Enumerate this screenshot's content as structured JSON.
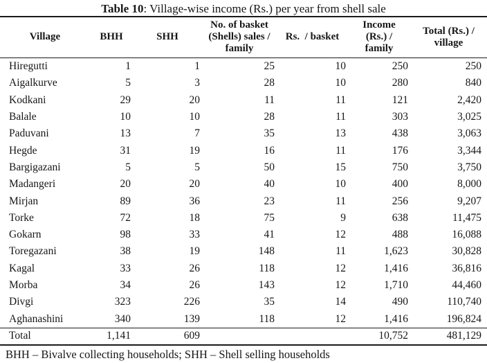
{
  "page": {
    "title_bold": "Table 10",
    "title_rest": ": Village-wise income (Rs.) per year from shell sale",
    "footnote": "BHH – Bivalve collecting households; SHH – Shell selling households"
  },
  "table": {
    "columns": [
      "Village",
      "BHH",
      "SHH",
      "No. of basket\n(Shells) sales /\nfamily",
      "Rs.  / basket",
      "Income\n(Rs.) /\nfamily",
      "Total (Rs.) /\nvillage"
    ],
    "rows": [
      [
        "Hiregutti",
        "1",
        "1",
        "25",
        "10",
        "250",
        "250"
      ],
      [
        "Aigalkurve",
        "5",
        "3",
        "28",
        "10",
        "280",
        "840"
      ],
      [
        "Kodkani",
        "29",
        "20",
        "11",
        "11",
        "121",
        "2,420"
      ],
      [
        "Balale",
        "10",
        "10",
        "28",
        "11",
        "303",
        "3,025"
      ],
      [
        "Paduvani",
        "13",
        "7",
        "35",
        "13",
        "438",
        "3,063"
      ],
      [
        "Hegde",
        "31",
        "19",
        "16",
        "11",
        "176",
        "3,344"
      ],
      [
        "Bargigazani",
        "5",
        "5",
        "50",
        "15",
        "750",
        "3,750"
      ],
      [
        "Madangeri",
        "20",
        "20",
        "40",
        "10",
        "400",
        "8,000"
      ],
      [
        "Mirjan",
        "89",
        "36",
        "23",
        "11",
        "256",
        "9,207"
      ],
      [
        "Torke",
        "72",
        "18",
        "75",
        "9",
        "638",
        "11,475"
      ],
      [
        "Gokarn",
        "98",
        "33",
        "41",
        "12",
        "488",
        "16,088"
      ],
      [
        "Toregazani",
        "38",
        "19",
        "148",
        "11",
        "1,623",
        "30,828"
      ],
      [
        "Kagal",
        "33",
        "26",
        "118",
        "12",
        "1,416",
        "36,816"
      ],
      [
        "Morba",
        "34",
        "26",
        "143",
        "12",
        "1,710",
        "44,460"
      ],
      [
        "Divgi",
        "323",
        "226",
        "35",
        "14",
        "490",
        "110,740"
      ],
      [
        "Aghanashini",
        "340",
        "139",
        "118",
        "12",
        "1,416",
        "196,824"
      ]
    ],
    "total_row": [
      "Total",
      "1,141",
      "609",
      "",
      "",
      "10,752",
      "481,129"
    ]
  }
}
